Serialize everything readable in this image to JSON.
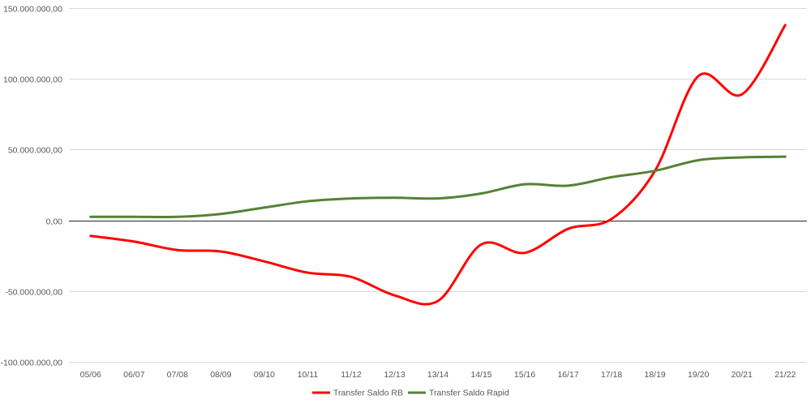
{
  "chart_data": {
    "type": "line",
    "title": "",
    "xlabel": "",
    "ylabel": "",
    "categories": [
      "05/06",
      "06/07",
      "07/08",
      "08/09",
      "09/10",
      "10/11",
      "11/12",
      "12/13",
      "13/14",
      "14/15",
      "15/16",
      "16/17",
      "17/18",
      "18/19",
      "19/20",
      "20/21",
      "21/22"
    ],
    "ylim": [
      -100000000,
      150000000
    ],
    "ytick_values": [
      -100000000,
      -50000000,
      0,
      50000000,
      100000000,
      150000000
    ],
    "ytick_labels": [
      "-100.000.000,00",
      "-50.000.000,00",
      "0,00",
      "50.000.000,00",
      "100.000.000,00",
      "150.000.000,00"
    ],
    "grid": true,
    "legend_position": "bottom",
    "series": [
      {
        "name": "Transfer Saldo RB",
        "color": "#ff0000",
        "values": [
          -11000000,
          -15000000,
          -21000000,
          -22000000,
          -29000000,
          -37000000,
          -40000000,
          -53000000,
          -57000000,
          -17000000,
          -23000000,
          -6000000,
          1000000,
          35000000,
          102000000,
          89000000,
          138000000
        ]
      },
      {
        "name": "Transfer Saldo Rapid",
        "color": "#548235",
        "values": [
          2500000,
          2500000,
          2500000,
          4500000,
          9000000,
          13500000,
          15500000,
          16000000,
          15500000,
          19000000,
          25500000,
          24500000,
          30500000,
          35000000,
          42500000,
          44500000,
          45000000
        ]
      }
    ]
  }
}
